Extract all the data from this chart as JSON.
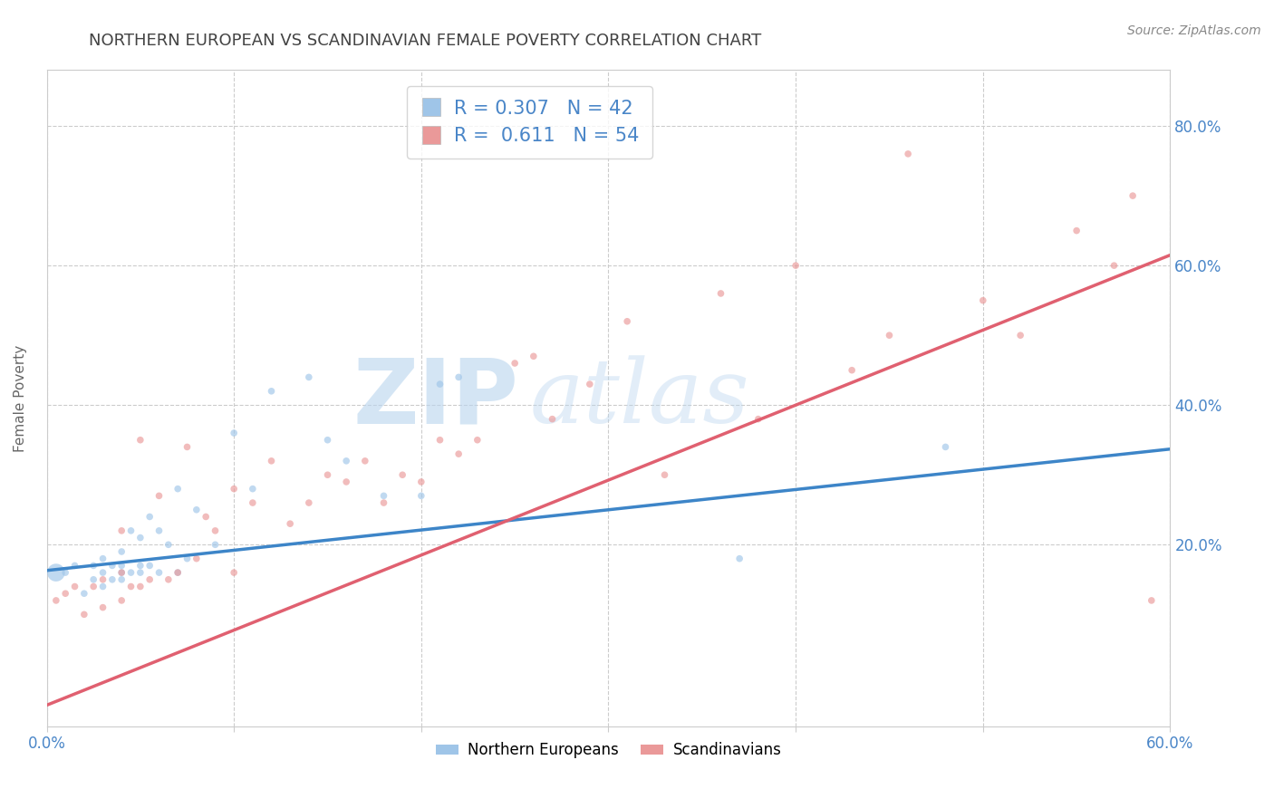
{
  "title": "NORTHERN EUROPEAN VS SCANDINAVIAN FEMALE POVERTY CORRELATION CHART",
  "source": "Source: ZipAtlas.com",
  "ylabel": "Female Poverty",
  "xlim": [
    0.0,
    0.6
  ],
  "ylim": [
    -0.06,
    0.88
  ],
  "xticks": [
    0.0,
    0.1,
    0.2,
    0.3,
    0.4,
    0.5,
    0.6
  ],
  "xticklabels": [
    "0.0%",
    "",
    "",
    "",
    "",
    "",
    "60.0%"
  ],
  "yticks": [
    0.2,
    0.4,
    0.6,
    0.8
  ],
  "yticklabels": [
    "20.0%",
    "40.0%",
    "60.0%",
    "80.0%"
  ],
  "blue_color": "#9fc5e8",
  "pink_color": "#ea9999",
  "blue_line_color": "#3d85c8",
  "pink_line_color": "#e06070",
  "watermark_zip": "ZIP",
  "watermark_atlas": "atlas",
  "grid_color": "#cccccc",
  "title_color": "#434343",
  "axis_color": "#4a86c8",
  "blue_scatter_x": [
    0.005,
    0.01,
    0.015,
    0.02,
    0.025,
    0.025,
    0.03,
    0.03,
    0.03,
    0.035,
    0.035,
    0.04,
    0.04,
    0.04,
    0.04,
    0.045,
    0.045,
    0.05,
    0.05,
    0.05,
    0.055,
    0.055,
    0.06,
    0.06,
    0.065,
    0.07,
    0.07,
    0.075,
    0.08,
    0.09,
    0.1,
    0.11,
    0.12,
    0.14,
    0.15,
    0.16,
    0.18,
    0.2,
    0.21,
    0.22,
    0.37,
    0.48
  ],
  "blue_scatter_y": [
    0.16,
    0.16,
    0.17,
    0.13,
    0.15,
    0.17,
    0.14,
    0.16,
    0.18,
    0.15,
    0.17,
    0.15,
    0.16,
    0.17,
    0.19,
    0.16,
    0.22,
    0.16,
    0.17,
    0.21,
    0.17,
    0.24,
    0.16,
    0.22,
    0.2,
    0.16,
    0.28,
    0.18,
    0.25,
    0.2,
    0.36,
    0.28,
    0.42,
    0.44,
    0.35,
    0.32,
    0.27,
    0.27,
    0.43,
    0.44,
    0.18,
    0.34
  ],
  "blue_scatter_size": [
    200,
    30,
    30,
    30,
    30,
    30,
    30,
    30,
    30,
    30,
    30,
    30,
    30,
    30,
    30,
    30,
    30,
    30,
    30,
    30,
    30,
    30,
    30,
    30,
    30,
    30,
    30,
    30,
    30,
    30,
    30,
    30,
    30,
    30,
    30,
    30,
    30,
    30,
    30,
    30,
    30,
    30
  ],
  "pink_scatter_x": [
    0.005,
    0.01,
    0.015,
    0.02,
    0.025,
    0.03,
    0.03,
    0.04,
    0.04,
    0.04,
    0.045,
    0.05,
    0.05,
    0.055,
    0.06,
    0.065,
    0.07,
    0.075,
    0.08,
    0.085,
    0.09,
    0.1,
    0.1,
    0.11,
    0.12,
    0.13,
    0.14,
    0.15,
    0.16,
    0.17,
    0.18,
    0.19,
    0.2,
    0.21,
    0.22,
    0.23,
    0.25,
    0.26,
    0.27,
    0.29,
    0.31,
    0.33,
    0.36,
    0.38,
    0.4,
    0.43,
    0.45,
    0.46,
    0.5,
    0.52,
    0.55,
    0.57,
    0.58,
    0.59
  ],
  "pink_scatter_y": [
    0.12,
    0.13,
    0.14,
    0.1,
    0.14,
    0.11,
    0.15,
    0.12,
    0.16,
    0.22,
    0.14,
    0.14,
    0.35,
    0.15,
    0.27,
    0.15,
    0.16,
    0.34,
    0.18,
    0.24,
    0.22,
    0.16,
    0.28,
    0.26,
    0.32,
    0.23,
    0.26,
    0.3,
    0.29,
    0.32,
    0.26,
    0.3,
    0.29,
    0.35,
    0.33,
    0.35,
    0.46,
    0.47,
    0.38,
    0.43,
    0.52,
    0.3,
    0.56,
    0.38,
    0.6,
    0.45,
    0.5,
    0.76,
    0.55,
    0.5,
    0.65,
    0.6,
    0.7,
    0.12
  ],
  "pink_scatter_size": [
    30,
    30,
    30,
    30,
    30,
    30,
    30,
    30,
    30,
    30,
    30,
    30,
    30,
    30,
    30,
    30,
    30,
    30,
    30,
    30,
    30,
    30,
    30,
    30,
    30,
    30,
    30,
    30,
    30,
    30,
    30,
    30,
    30,
    30,
    30,
    30,
    30,
    30,
    30,
    30,
    30,
    30,
    30,
    30,
    30,
    30,
    30,
    30,
    30,
    30,
    30,
    30,
    30,
    30
  ],
  "blue_line_x": [
    0.0,
    0.6
  ],
  "blue_line_y": [
    0.163,
    0.337
  ],
  "pink_line_x": [
    0.0,
    0.6
  ],
  "pink_line_y": [
    -0.03,
    0.615
  ]
}
